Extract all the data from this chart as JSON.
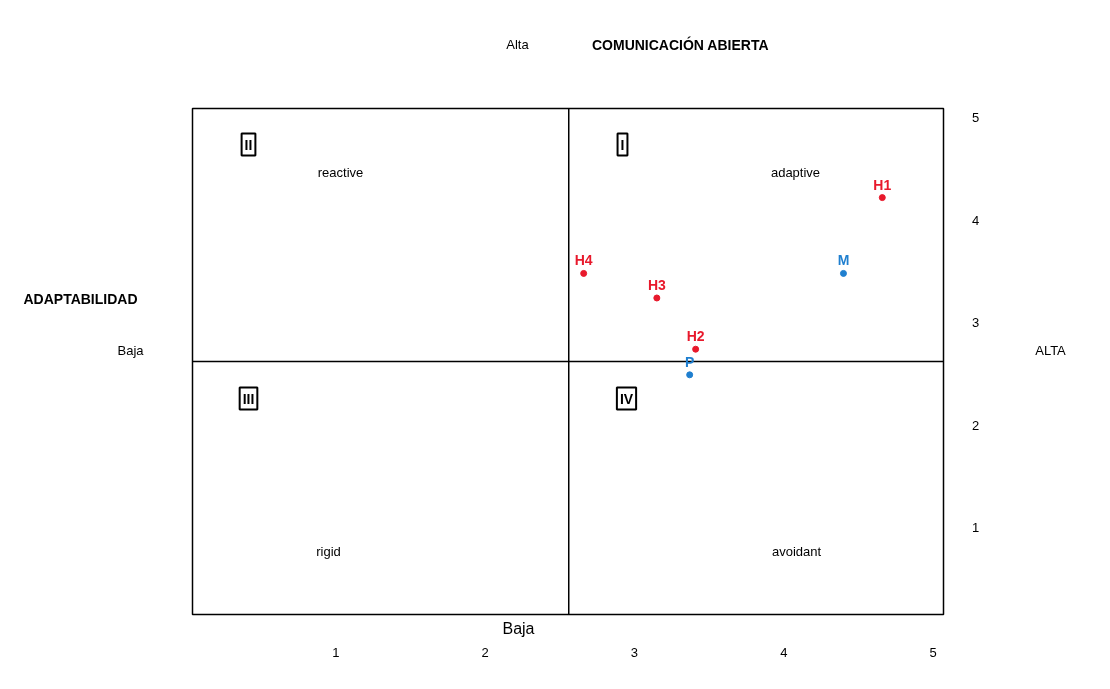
{
  "chart_data": {
    "type": "scatter",
    "title": "COMUNICACIÓN ABIERTA",
    "ylabel": "ADAPTABILIDAD",
    "xlim": [
      0.04,
      5.07
    ],
    "ylim": [
      0.15,
      5.09
    ],
    "xticks": [
      1,
      2,
      3,
      4,
      5
    ],
    "yticks": [
      1,
      2,
      3,
      4,
      5
    ],
    "grid": false,
    "marker": "circle",
    "ref_lines": [
      {
        "axis": "x",
        "value": 2.56,
        "label": null,
        "color": "#000000"
      },
      {
        "axis": "y",
        "value": 2.62,
        "label": null,
        "color": "#000000"
      }
    ],
    "series": [
      {
        "name": "H1",
        "color": "#e8192c",
        "x": [
          4.66
        ],
        "values": [
          4.22
        ]
      },
      {
        "name": "H4",
        "color": "#e8192c",
        "x": [
          2.66
        ],
        "values": [
          3.48
        ]
      },
      {
        "name": "M",
        "color": "#1f7fcf",
        "x": [
          4.4
        ],
        "values": [
          3.48
        ]
      },
      {
        "name": "H3",
        "color": "#e8192c",
        "x": [
          3.15
        ],
        "values": [
          3.24
        ]
      },
      {
        "name": "H2",
        "color": "#e8192c",
        "x": [
          3.41
        ],
        "values": [
          2.74
        ]
      },
      {
        "name": "P",
        "color": "#1f7fcf",
        "x": [
          3.37
        ],
        "values": [
          2.49
        ]
      }
    ],
    "annotations": [
      "II",
      "I",
      "III",
      "IV",
      "reactive",
      "adaptive",
      "rigid",
      "avoidant",
      "Alta",
      "Baja",
      "ALTA",
      "Baja"
    ]
  }
}
